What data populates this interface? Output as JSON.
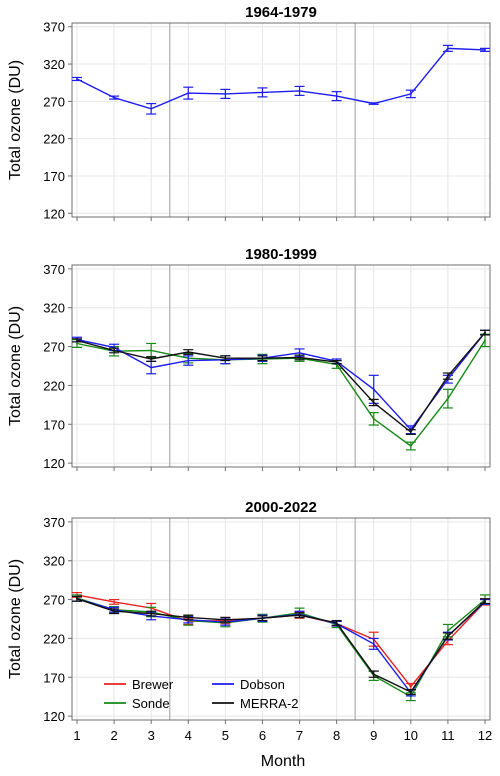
{
  "figure": {
    "shared_xlabel": "Month",
    "ylabel": "Total ozone (DU)"
  },
  "colors": {
    "Brewer": "#e8231f",
    "Sonde": "#168a16",
    "Dobson": "#1c1cf0",
    "MERRA-2": "#111111",
    "grid": "#e6e6e6",
    "divider": "#b4b4b4",
    "frame": "#6f6f6f"
  },
  "legend": {
    "entries": [
      "Brewer",
      "Dobson",
      "Sonde",
      "MERRA-2"
    ],
    "placement": "bottom-left of third panel, two columns"
  },
  "chart_data": [
    {
      "type": "line",
      "title": "1964-1979",
      "xlabel": "",
      "ylabel": "Total ozone (DU)",
      "x": [
        1,
        2,
        3,
        4,
        5,
        6,
        7,
        8,
        9,
        10,
        11,
        12
      ],
      "xlim": [
        1,
        12
      ],
      "ylim": [
        115,
        375
      ],
      "yticks": [
        120,
        170,
        220,
        270,
        320,
        370
      ],
      "grid": true,
      "season_dividers_at_month": [
        3.5,
        8.5
      ],
      "series": [
        {
          "name": "Dobson",
          "values": [
            300,
            275,
            260,
            281,
            280,
            282,
            284,
            277,
            267,
            280,
            341,
            339
          ],
          "errors": [
            2,
            2,
            7,
            8,
            6,
            6,
            6,
            6,
            1,
            5,
            4,
            2
          ]
        }
      ]
    },
    {
      "type": "line",
      "title": "1980-1999",
      "xlabel": "",
      "ylabel": "Total ozone (DU)",
      "x": [
        1,
        2,
        3,
        4,
        5,
        6,
        7,
        8,
        9,
        10,
        11,
        12
      ],
      "xlim": [
        1,
        12
      ],
      "ylim": [
        115,
        375
      ],
      "yticks": [
        120,
        170,
        220,
        270,
        320,
        370
      ],
      "grid": true,
      "season_dividers_at_month": [
        3.5,
        8.5
      ],
      "series": [
        {
          "name": "Sonde",
          "values": [
            274,
            264,
            265,
            255,
            253,
            254,
            255,
            247,
            177,
            142,
            203,
            278
          ],
          "errors": [
            5,
            6,
            9,
            6,
            5,
            6,
            4,
            5,
            8,
            5,
            12,
            8
          ]
        },
        {
          "name": "Dobson",
          "values": [
            279,
            269,
            243,
            252,
            253,
            255,
            262,
            251,
            215,
            163,
            228,
            288
          ],
          "errors": [
            3,
            4,
            8,
            6,
            5,
            4,
            5,
            3,
            18,
            5,
            5,
            3
          ]
        },
        {
          "name": "MERRA-2",
          "values": [
            278,
            265,
            254,
            263,
            255,
            255,
            256,
            250,
            198,
            160,
            232,
            288
          ],
          "errors": [
            2,
            3,
            3,
            3,
            3,
            3,
            3,
            2,
            4,
            3,
            4,
            3
          ]
        }
      ]
    },
    {
      "type": "line",
      "title": "2000-2022",
      "xlabel": "Month",
      "ylabel": "Total ozone (DU)",
      "x": [
        1,
        2,
        3,
        4,
        5,
        6,
        7,
        8,
        9,
        10,
        11,
        12
      ],
      "xlim": [
        1,
        12
      ],
      "ylim": [
        115,
        375
      ],
      "yticks": [
        120,
        170,
        220,
        270,
        320,
        370
      ],
      "xticks": [
        "1",
        "2",
        "3",
        "4",
        "5",
        "6",
        "7",
        "8",
        "9",
        "10",
        "11",
        "12"
      ],
      "grid": true,
      "season_dividers_at_month": [
        3.5,
        8.5
      ],
      "series": [
        {
          "name": "Brewer",
          "values": [
            276,
            267,
            259,
            242,
            243,
            246,
            250,
            239,
            219,
            158,
            217,
            267
          ],
          "errors": [
            3,
            3,
            6,
            4,
            4,
            4,
            4,
            3,
            9,
            4,
            5,
            4
          ]
        },
        {
          "name": "Sonde",
          "values": [
            272,
            257,
            254,
            243,
            240,
            246,
            253,
            238,
            172,
            145,
            230,
            270
          ],
          "errors": [
            4,
            4,
            6,
            6,
            5,
            5,
            6,
            4,
            6,
            5,
            8,
            6
          ]
        },
        {
          "name": "Dobson",
          "values": [
            271,
            257,
            249,
            244,
            241,
            246,
            251,
            239,
            213,
            150,
            223,
            267
          ],
          "errors": [
            3,
            3,
            5,
            4,
            4,
            4,
            4,
            3,
            7,
            4,
            5,
            3
          ]
        },
        {
          "name": "MERRA-2",
          "values": [
            271,
            255,
            252,
            247,
            244,
            246,
            250,
            240,
            174,
            151,
            223,
            268
          ],
          "errors": [
            3,
            3,
            3,
            3,
            3,
            3,
            3,
            3,
            4,
            3,
            4,
            3
          ]
        }
      ]
    }
  ]
}
